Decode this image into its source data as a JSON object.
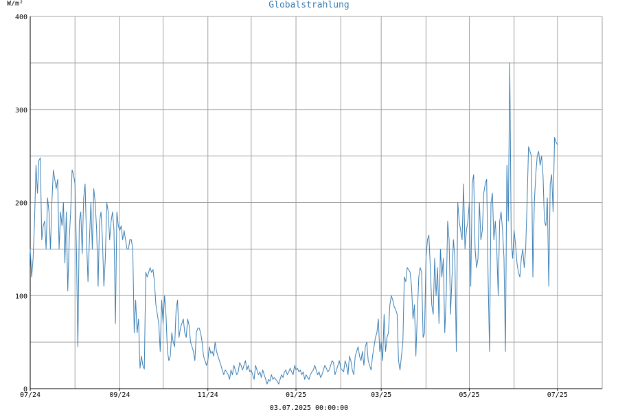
{
  "chart_data": {
    "type": "line",
    "title": "Globalstrahlung",
    "ylabel": "W/m²",
    "xlabel": "",
    "footer": "03.07.2025 00:00:00",
    "line_color": "#3a7fb5",
    "title_color": "#3a7fb5",
    "grid_color": "#a0a0a0",
    "grid": true,
    "ylim": [
      0,
      400
    ],
    "y_ticks": [
      0,
      100,
      200,
      300,
      400
    ],
    "y_gridlines": [
      0,
      50,
      100,
      150,
      200,
      250,
      300,
      350,
      400
    ],
    "xlim": [
      "2024-07-01",
      "2025-08-01"
    ],
    "x_ticks": [
      {
        "label": "07/24",
        "date": "2024-07-01"
      },
      {
        "label": "09/24",
        "date": "2024-09-01"
      },
      {
        "label": "11/24",
        "date": "2024-11-01"
      },
      {
        "label": "01/25",
        "date": "2025-01-01"
      },
      {
        "label": "03/25",
        "date": "2025-03-01"
      },
      {
        "label": "05/25",
        "date": "2025-05-01"
      },
      {
        "label": "07/25",
        "date": "2025-07-01"
      }
    ],
    "x_gridlines": [
      "2024-07-01",
      "2024-08-01",
      "2024-09-01",
      "2024-10-01",
      "2024-11-01",
      "2024-12-01",
      "2025-01-01",
      "2025-02-01",
      "2025-03-01",
      "2025-04-01",
      "2025-05-01",
      "2025-06-01",
      "2025-07-01",
      "2025-08-01"
    ],
    "series": [
      {
        "x_start": "2024-07-01",
        "x_step_days": 1,
        "values": [
          150,
          120,
          140,
          180,
          240,
          210,
          245,
          248,
          160,
          175,
          180,
          150,
          205,
          190,
          150,
          200,
          235,
          225,
          215,
          225,
          150,
          190,
          175,
          200,
          135,
          190,
          105,
          160,
          190,
          235,
          230,
          220,
          150,
          45,
          180,
          190,
          145,
          205,
          220,
          160,
          115,
          160,
          200,
          150,
          215,
          200,
          170,
          110,
          180,
          190,
          160,
          110,
          140,
          200,
          190,
          160,
          180,
          190,
          170,
          70,
          190,
          175,
          170,
          175,
          160,
          170,
          160,
          150,
          150,
          160,
          160,
          150,
          60,
          95,
          60,
          75,
          22,
          35,
          25,
          21,
          125,
          120,
          125,
          130,
          125,
          128,
          115,
          90,
          80,
          70,
          40,
          95,
          70,
          100,
          80,
          40,
          30,
          35,
          60,
          50,
          45,
          85,
          95,
          55,
          65,
          70,
          75,
          60,
          55,
          75,
          68,
          50,
          45,
          40,
          30,
          60,
          65,
          65,
          60,
          50,
          35,
          30,
          25,
          30,
          45,
          38,
          40,
          35,
          50,
          40,
          35,
          30,
          25,
          20,
          15,
          20,
          18,
          15,
          10,
          20,
          15,
          25,
          20,
          15,
          18,
          28,
          25,
          20,
          25,
          30,
          20,
          25,
          18,
          20,
          15,
          10,
          25,
          20,
          15,
          18,
          12,
          20,
          15,
          10,
          5,
          10,
          8,
          15,
          10,
          12,
          10,
          8,
          5,
          10,
          15,
          12,
          18,
          20,
          15,
          18,
          22,
          18,
          15,
          25,
          20,
          22,
          18,
          20,
          15,
          18,
          10,
          15,
          12,
          10,
          15,
          18,
          20,
          25,
          20,
          15,
          18,
          12,
          15,
          20,
          25,
          22,
          18,
          20,
          25,
          30,
          28,
          15,
          20,
          25,
          30,
          22,
          20,
          18,
          30,
          25,
          15,
          35,
          30,
          20,
          15,
          35,
          40,
          45,
          35,
          30,
          40,
          25,
          45,
          50,
          30,
          25,
          20,
          35,
          45,
          55,
          60,
          75,
          40,
          50,
          30,
          80,
          40,
          55,
          60,
          90,
          100,
          95,
          88,
          85,
          80,
          30,
          20,
          35,
          50,
          120,
          115,
          130,
          128,
          125,
          110,
          75,
          90,
          35,
          80,
          120,
          130,
          125,
          55,
          60,
          140,
          160,
          165,
          130,
          90,
          80,
          140,
          100,
          130,
          70,
          150,
          120,
          140,
          60,
          100,
          180,
          160,
          80,
          120,
          160,
          140,
          40,
          200,
          180,
          170,
          160,
          220,
          150,
          170,
          180,
          200,
          110,
          220,
          230,
          150,
          130,
          140,
          200,
          160,
          170,
          210,
          220,
          225,
          120,
          40,
          200,
          210,
          160,
          180,
          150,
          100,
          180,
          190,
          170,
          140,
          40,
          240,
          180,
          350,
          160,
          140,
          170,
          155,
          135,
          125,
          120,
          140,
          150,
          130,
          150,
          200,
          260,
          255,
          250,
          120,
          200,
          230,
          250,
          255,
          240,
          250,
          230,
          180,
          175,
          205,
          110,
          220,
          230,
          190,
          270,
          265,
          262
        ]
      }
    ]
  }
}
